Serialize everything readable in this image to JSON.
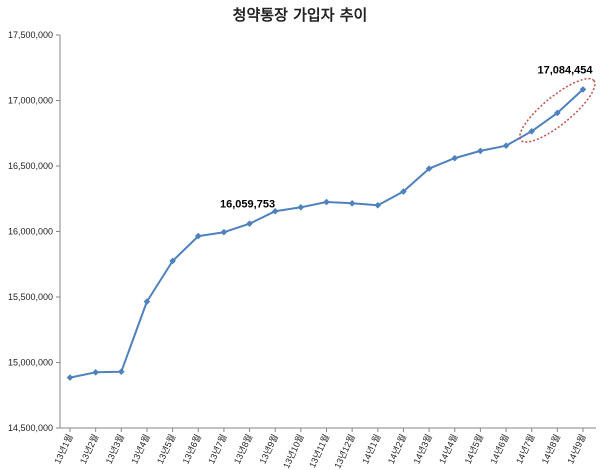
{
  "chart_data": {
    "type": "line",
    "title": "청약통장 가입자 추이",
    "xlabel": "",
    "ylabel": "",
    "ylim": [
      14500000,
      17500000
    ],
    "yticks": [
      14500000,
      15000000,
      15500000,
      16000000,
      16500000,
      17000000,
      17500000
    ],
    "ytick_labels": [
      "14,500,000",
      "15,000,000",
      "15,500,000",
      "16,000,000",
      "16,500,000",
      "17,000,000",
      "17,500,000"
    ],
    "grid": false,
    "categories": [
      "13년1월",
      "13년2월",
      "13년3월",
      "13년4월",
      "13년5월",
      "13년6월",
      "13년7월",
      "13년8월",
      "13년9월",
      "13년10월",
      "13년11월",
      "13년12월",
      "14년1월",
      "14년2월",
      "14년3월",
      "14년4월",
      "14년5월",
      "14년6월",
      "14년7월",
      "14년8월",
      "14년9월"
    ],
    "series": [
      {
        "values": [
          14885000,
          14925000,
          14930000,
          15465000,
          15775000,
          15965000,
          15995000,
          16059753,
          16155000,
          16185000,
          16225000,
          16215000,
          16200000,
          16305000,
          16480000,
          16560000,
          16615000,
          16655000,
          16765000,
          16905000,
          17084454
        ],
        "color": "#4F81BD"
      }
    ],
    "annotations": [
      {
        "index": 7,
        "text": "16,059,753"
      },
      {
        "index": 20,
        "text": "17,084,454"
      }
    ],
    "highlight": {
      "from_index": 18,
      "to_index": 20,
      "color": "#C0504D",
      "shape": "dotted-ellipse"
    }
  }
}
